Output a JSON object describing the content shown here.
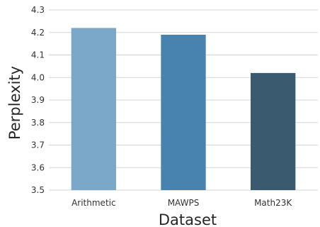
{
  "chart_data": {
    "type": "bar",
    "title": "",
    "xlabel": "Dataset",
    "ylabel": "Perplexity",
    "categories": [
      "Arithmetic",
      "MAWPS",
      "Math23K"
    ],
    "values": [
      4.22,
      4.19,
      4.02
    ],
    "colors": [
      "#7ba7c8",
      "#4883b0",
      "#3a5a70"
    ],
    "ylim": [
      3.5,
      4.3
    ],
    "yticks": [
      "3.5",
      "3.6",
      "3.7",
      "3.8",
      "3.9",
      "4.0",
      "4.1",
      "4.2",
      "4.3"
    ],
    "grid": true,
    "grid_color": "#d5d5d5"
  }
}
